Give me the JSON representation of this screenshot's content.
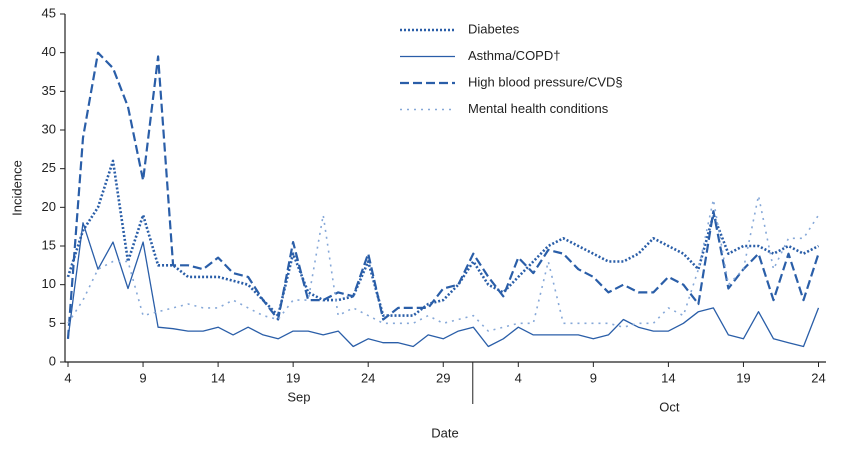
{
  "chart_data": {
    "type": "line",
    "ylabel": "Incidence",
    "xlabel": "Date",
    "x": [
      4,
      5,
      6,
      7,
      8,
      9,
      10,
      11,
      12,
      13,
      14,
      15,
      16,
      17,
      18,
      19,
      20,
      21,
      22,
      23,
      24,
      25,
      26,
      27,
      28,
      29,
      30,
      31,
      32,
      33,
      34,
      35,
      36,
      37,
      38,
      39,
      40,
      41,
      42,
      43,
      44,
      45,
      46,
      47,
      48,
      49,
      50,
      51,
      52,
      53,
      54
    ],
    "xlim": [
      3.8,
      54.5
    ],
    "xticks": [
      4,
      9,
      14,
      19,
      24,
      29,
      {
        "value": 34,
        "label": "4"
      },
      {
        "value": 39,
        "label": "9"
      },
      {
        "value": 44,
        "label": "14"
      },
      {
        "value": 49,
        "label": "19"
      },
      {
        "value": 54,
        "label": "24"
      }
    ],
    "month_labels": [
      "Sep",
      "Oct"
    ],
    "ylim": [
      0,
      45
    ],
    "yticks": [
      0,
      5,
      10,
      15,
      20,
      25,
      30,
      35,
      40,
      45
    ],
    "series": [
      {
        "name": "Diabetes",
        "color": "#2a5ea8",
        "linestyle": "dotted-bold",
        "values": [
          11,
          17,
          20,
          26,
          13,
          19,
          12.5,
          12.5,
          11,
          11,
          11,
          10.5,
          10,
          8,
          6,
          14,
          9,
          8,
          8,
          8.5,
          13,
          6,
          6,
          6,
          7.5,
          8,
          10,
          13,
          10,
          9,
          11,
          13,
          15,
          16,
          15,
          14,
          13,
          13,
          14,
          16,
          15,
          14,
          12,
          19,
          14,
          15,
          15,
          14,
          15,
          14,
          15
        ]
      },
      {
        "name": "Asthma/COPD†",
        "color": "#2a5ea8",
        "linestyle": "solid",
        "values": [
          3,
          18,
          12,
          15.5,
          9.5,
          15.5,
          4.5,
          4.3,
          4,
          4,
          4.5,
          3.5,
          4.5,
          3.5,
          3,
          4,
          4,
          3.5,
          4,
          2,
          3,
          2.5,
          2.5,
          2,
          3.5,
          3,
          4,
          4.5,
          2,
          3,
          4.5,
          3.5,
          3.5,
          3.5,
          3.5,
          3,
          3.5,
          5.5,
          4.5,
          4,
          4,
          5,
          6.5,
          7,
          3.5,
          3,
          6.5,
          3,
          2.5,
          2,
          7
        ]
      },
      {
        "name": "High blood pressure/CVD§",
        "color": "#2a5ea8",
        "linestyle": "dashed",
        "values": [
          3,
          29,
          40,
          38,
          33,
          23.5,
          39.5,
          12.5,
          12.5,
          12,
          13.5,
          11.5,
          11,
          8,
          5.5,
          15.5,
          8,
          8,
          9,
          8.5,
          14,
          5.5,
          7,
          7,
          7,
          9.5,
          10,
          14,
          11,
          8.5,
          13.5,
          11.5,
          14.5,
          14,
          12,
          11,
          9,
          10,
          9,
          9,
          11,
          10,
          7.5,
          19.5,
          9.5,
          12,
          14,
          8,
          14,
          8,
          14
        ]
      },
      {
        "name": "Mental health conditions",
        "color": "#86a8d8",
        "linestyle": "dotted",
        "values": [
          5,
          8,
          12,
          13,
          13,
          6,
          6.5,
          7,
          7.5,
          7,
          7,
          8,
          7,
          6,
          5.5,
          8,
          8,
          19,
          6,
          7,
          6,
          5,
          5,
          5,
          6,
          5,
          5.5,
          6,
          4,
          4.5,
          5,
          5,
          13,
          5,
          5,
          5,
          5,
          4.5,
          5,
          5,
          7,
          6,
          12,
          21,
          10,
          12,
          21.5,
          12,
          16,
          16,
          19
        ]
      }
    ]
  }
}
